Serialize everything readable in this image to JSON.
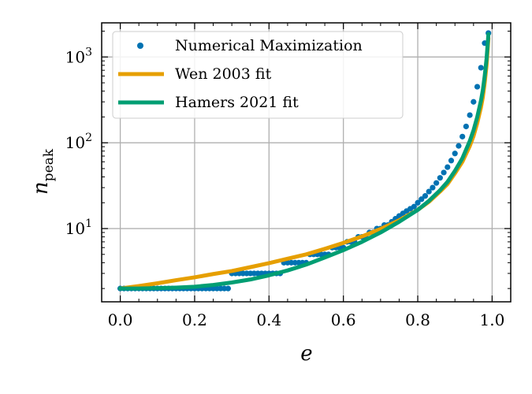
{
  "chart_data": {
    "type": "scatter+line",
    "xlabel": "e",
    "ylabel_main": "n",
    "ylabel_sub": "peak",
    "xscale": "linear",
    "yscale": "log",
    "xlim": [
      -0.05,
      1.05
    ],
    "ylim": [
      1.4,
      2500
    ],
    "xticks": [
      0.0,
      0.2,
      0.4,
      0.6,
      0.8,
      1.0
    ],
    "xtick_labels": [
      "0.0",
      "0.2",
      "0.4",
      "0.6",
      "0.8",
      "1.0"
    ],
    "yticks": [
      10,
      100,
      1000
    ],
    "ytick_base": "10",
    "ytick_exponents": [
      "1",
      "2",
      "3"
    ],
    "grid": true,
    "legend_position": "top-left",
    "colors": {
      "numerical": "#0072B2",
      "wen": "#E69F00",
      "hamers": "#009E73",
      "grid": "#b0b0b0"
    },
    "series": [
      {
        "name": "Numerical Maximization",
        "kind": "scatter",
        "color_key": "numerical",
        "x": [
          0.0,
          0.01,
          0.02,
          0.03,
          0.04,
          0.05,
          0.06,
          0.07,
          0.08,
          0.09,
          0.1,
          0.11,
          0.12,
          0.13,
          0.14,
          0.15,
          0.16,
          0.17,
          0.18,
          0.19,
          0.2,
          0.21,
          0.22,
          0.23,
          0.24,
          0.25,
          0.26,
          0.27,
          0.28,
          0.29,
          0.3,
          0.31,
          0.32,
          0.33,
          0.34,
          0.35,
          0.36,
          0.37,
          0.38,
          0.39,
          0.4,
          0.41,
          0.42,
          0.43,
          0.44,
          0.45,
          0.46,
          0.47,
          0.48,
          0.49,
          0.5,
          0.51,
          0.52,
          0.53,
          0.54,
          0.55,
          0.56,
          0.57,
          0.58,
          0.59,
          0.6,
          0.61,
          0.62,
          0.63,
          0.64,
          0.65,
          0.66,
          0.67,
          0.68,
          0.69,
          0.7,
          0.71,
          0.72,
          0.73,
          0.74,
          0.75,
          0.76,
          0.77,
          0.78,
          0.79,
          0.8,
          0.81,
          0.82,
          0.83,
          0.84,
          0.85,
          0.86,
          0.87,
          0.88,
          0.89,
          0.9,
          0.91,
          0.92,
          0.93,
          0.94,
          0.95,
          0.96,
          0.97,
          0.98,
          0.99
        ],
        "y": [
          2,
          2,
          2,
          2,
          2,
          2,
          2,
          2,
          2,
          2,
          2,
          2,
          2,
          2,
          2,
          2,
          2,
          2,
          2,
          2,
          2,
          2,
          2,
          2,
          2,
          2,
          2,
          2,
          2,
          2,
          3,
          3,
          3,
          3,
          3,
          3,
          3,
          3,
          3,
          3,
          3,
          3,
          3,
          3,
          4,
          4,
          4,
          4,
          4,
          4,
          4,
          5,
          5,
          5,
          5,
          5,
          5,
          6,
          6,
          6,
          6,
          7,
          7,
          7,
          8,
          8,
          8,
          9,
          9,
          10,
          10,
          11,
          11,
          12,
          13,
          14,
          15,
          16,
          17,
          18,
          20,
          22,
          24,
          27,
          30,
          34,
          39,
          45,
          52,
          62,
          75,
          92,
          118,
          155,
          210,
          300,
          450,
          750,
          1450,
          1900
        ]
      },
      {
        "name": "Wen 2003 fit",
        "kind": "line",
        "color_key": "wen",
        "x": [
          0.0,
          0.05,
          0.1,
          0.15,
          0.2,
          0.25,
          0.3,
          0.35,
          0.4,
          0.45,
          0.5,
          0.55,
          0.6,
          0.65,
          0.7,
          0.75,
          0.8,
          0.83,
          0.86,
          0.88,
          0.9,
          0.92,
          0.94,
          0.95,
          0.96,
          0.97,
          0.975,
          0.98,
          0.985,
          0.99
        ],
        "y": [
          2.0,
          2.14,
          2.3,
          2.5,
          2.7,
          2.95,
          3.2,
          3.55,
          3.95,
          4.45,
          5.0,
          5.8,
          6.8,
          8.1,
          9.9,
          12.5,
          16.5,
          20.5,
          27,
          33,
          44,
          60,
          92,
          120,
          170,
          260,
          340,
          500,
          800,
          1650
        ]
      },
      {
        "name": "Hamers 2021 fit",
        "kind": "line",
        "color_key": "hamers",
        "x": [
          0.0,
          0.05,
          0.1,
          0.15,
          0.2,
          0.25,
          0.3,
          0.35,
          0.4,
          0.45,
          0.5,
          0.55,
          0.6,
          0.65,
          0.7,
          0.75,
          0.8,
          0.83,
          0.86,
          0.88,
          0.9,
          0.92,
          0.94,
          0.95,
          0.96,
          0.97,
          0.975,
          0.98,
          0.985,
          0.99
        ],
        "y": [
          2.0,
          2.0,
          2.02,
          2.05,
          2.1,
          2.2,
          2.35,
          2.55,
          2.85,
          3.25,
          3.8,
          4.6,
          5.6,
          7.0,
          9.0,
          12.0,
          16.5,
          21,
          28,
          35,
          47,
          66,
          105,
          140,
          200,
          310,
          410,
          600,
          950,
          1850
        ]
      }
    ]
  }
}
